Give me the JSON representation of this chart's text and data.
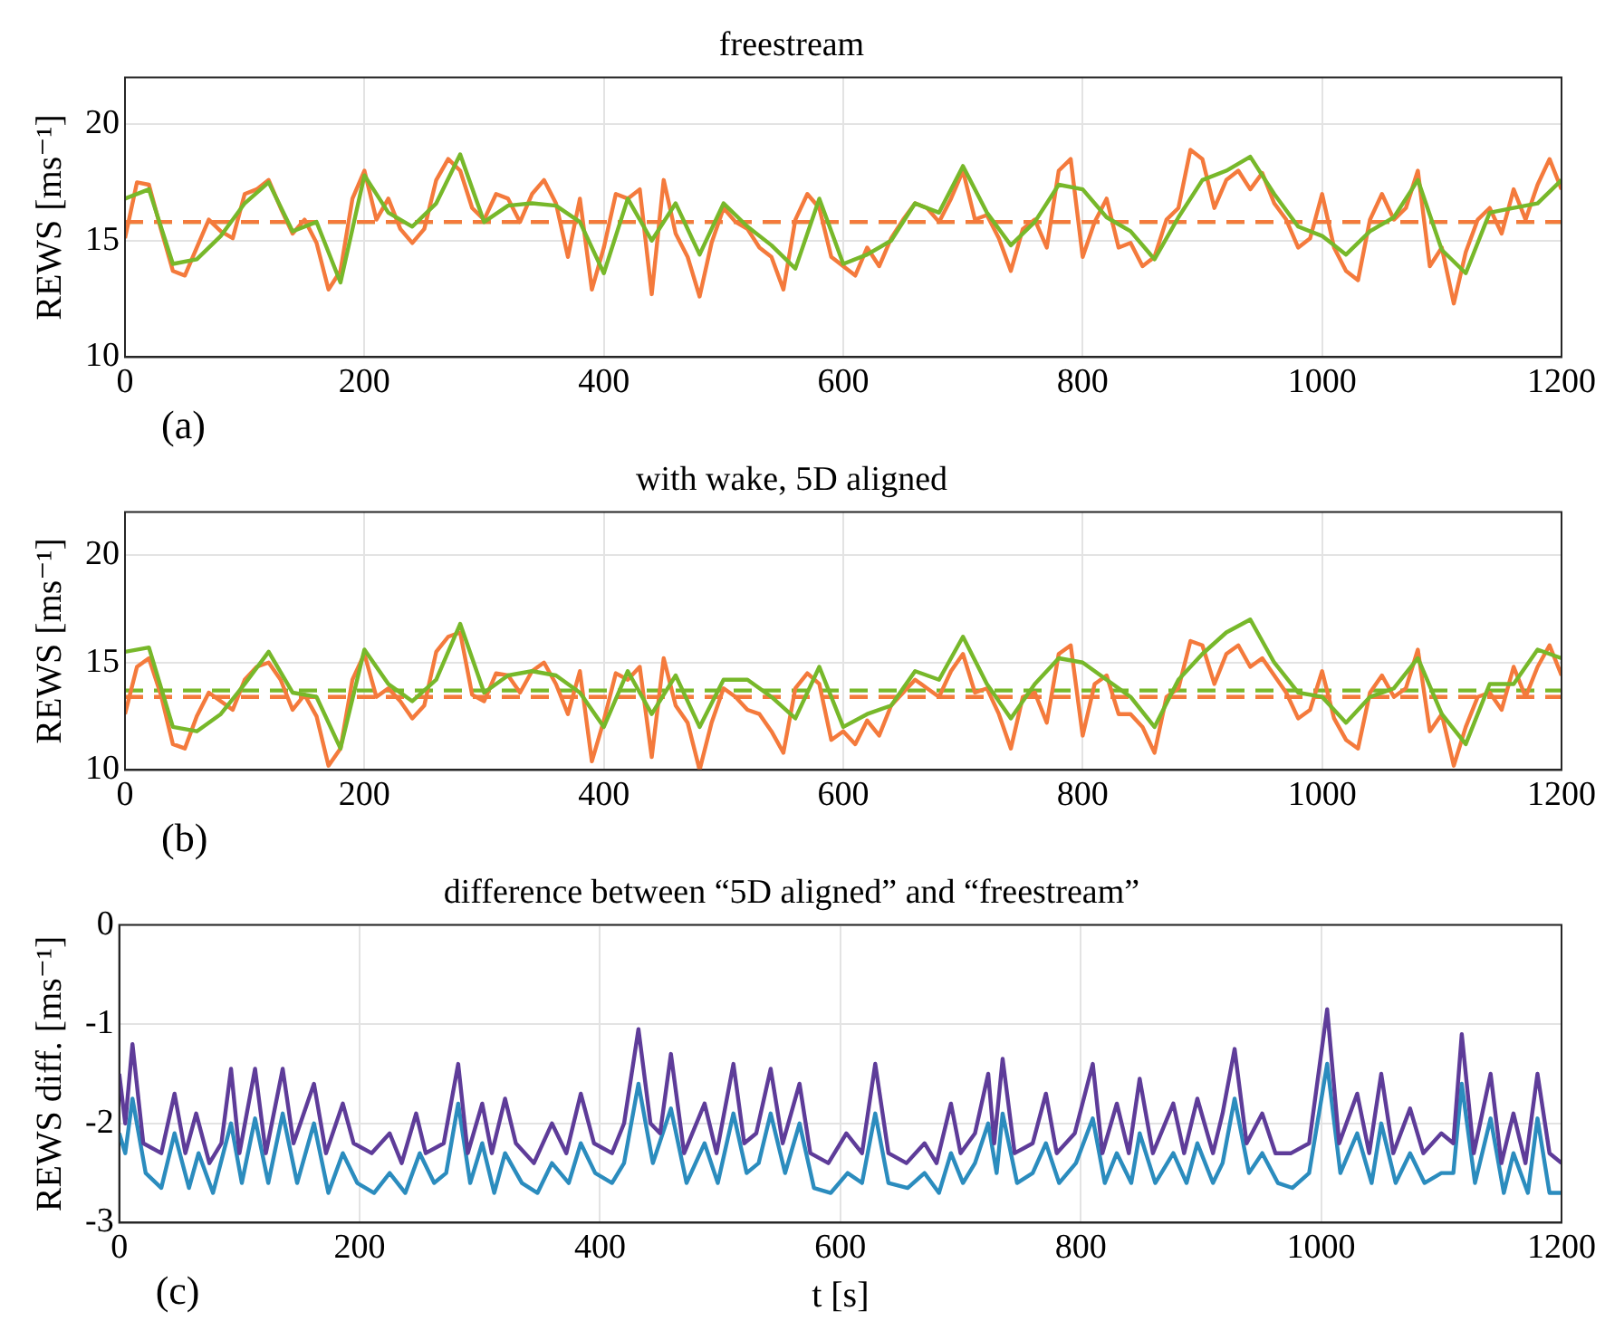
{
  "chart_data": [
    {
      "type": "line",
      "title": "freestream",
      "ylabel": "REWS [ms⁻¹]",
      "annotations": [
        "(a)"
      ],
      "xlim": [
        0,
        1200
      ],
      "xticks": [
        0,
        200,
        400,
        600,
        800,
        1000,
        1200
      ],
      "ylim": [
        10,
        22
      ],
      "yticks": [
        10,
        15,
        20
      ],
      "grid": true,
      "legend": false,
      "marker": "none",
      "line_style": "solid",
      "series": [
        {
          "color": "#77b82a",
          "x": [
            0,
            20,
            40,
            60,
            80,
            100,
            120,
            140,
            160,
            180,
            200,
            220,
            240,
            260,
            280,
            300,
            320,
            340,
            360,
            380,
            400,
            420,
            440,
            460,
            480,
            500,
            520,
            540,
            560,
            580,
            600,
            620,
            640,
            660,
            680,
            700,
            720,
            740,
            760,
            780,
            800,
            820,
            840,
            860,
            880,
            900,
            920,
            940,
            960,
            980,
            1000,
            1020,
            1040,
            1060,
            1080,
            1100,
            1120,
            1140,
            1160,
            1180,
            1200
          ],
          "values": [
            16.8,
            17.2,
            14,
            14.2,
            15.2,
            16.6,
            17.5,
            15.4,
            15.8,
            13.2,
            17.8,
            16.2,
            15.6,
            16.6,
            18.7,
            15.8,
            16.5,
            16.6,
            16.5,
            15.8,
            13.6,
            16.8,
            15,
            16.6,
            14.4,
            16.6,
            15.6,
            14.8,
            13.8,
            16.8,
            14,
            14.4,
            15,
            16.6,
            16.2,
            18.2,
            16.2,
            14.8,
            15.8,
            17.4,
            17.2,
            16,
            15.4,
            14.2,
            16,
            17.6,
            18,
            18.6,
            17,
            15.6,
            15.2,
            14.4,
            15.4,
            16,
            17.6,
            14.6,
            13.6,
            16.2,
            16.4,
            16.6,
            17.6
          ]
        },
        {
          "color": "#f47a3c",
          "x": [
            0,
            10,
            20,
            30,
            40,
            50,
            60,
            70,
            80,
            90,
            100,
            110,
            120,
            130,
            140,
            150,
            160,
            170,
            180,
            190,
            200,
            210,
            220,
            230,
            240,
            250,
            260,
            270,
            280,
            290,
            300,
            310,
            320,
            330,
            340,
            350,
            360,
            370,
            380,
            390,
            400,
            410,
            420,
            430,
            440,
            450,
            460,
            470,
            480,
            490,
            500,
            510,
            520,
            530,
            540,
            550,
            560,
            570,
            580,
            590,
            600,
            610,
            620,
            630,
            640,
            650,
            660,
            670,
            680,
            690,
            700,
            710,
            720,
            730,
            740,
            750,
            760,
            770,
            780,
            790,
            800,
            810,
            820,
            830,
            840,
            850,
            860,
            870,
            880,
            890,
            900,
            910,
            920,
            930,
            940,
            950,
            960,
            970,
            980,
            990,
            1000,
            1010,
            1020,
            1030,
            1040,
            1050,
            1060,
            1070,
            1080,
            1090,
            1100,
            1110,
            1120,
            1130,
            1140,
            1150,
            1160,
            1170,
            1180,
            1190,
            1200
          ],
          "values": [
            15.1,
            17.5,
            17.4,
            15.5,
            13.7,
            13.5,
            14.7,
            15.9,
            15.4,
            15.1,
            17,
            17.2,
            17.6,
            16.4,
            15.3,
            15.9,
            14.9,
            12.9,
            13.7,
            16.8,
            18,
            15.9,
            16.8,
            15.5,
            14.9,
            15.5,
            17.6,
            18.5,
            18,
            16.4,
            15.9,
            17,
            16.8,
            15.8,
            17,
            17.6,
            16.6,
            14.3,
            16.8,
            12.9,
            14.7,
            17,
            16.8,
            17.2,
            12.7,
            17.6,
            15.3,
            14.3,
            12.6,
            14.9,
            16.4,
            15.8,
            15.5,
            14.7,
            14.3,
            12.9,
            15.9,
            17,
            16.4,
            14.3,
            13.9,
            13.5,
            14.7,
            13.9,
            15.1,
            15.9,
            16.6,
            16.4,
            15.8,
            16.8,
            18,
            15.9,
            16.1,
            15.1,
            13.7,
            15.5,
            15.9,
            14.7,
            18,
            18.5,
            14.3,
            15.8,
            16.8,
            14.7,
            14.9,
            13.9,
            14.3,
            15.9,
            16.4,
            18.9,
            18.5,
            16.4,
            17.6,
            18,
            17.2,
            17.9,
            16.6,
            15.9,
            14.7,
            15.1,
            17,
            14.7,
            13.7,
            13.3,
            15.9,
            17,
            15.9,
            16.4,
            18,
            13.9,
            14.7,
            12.3,
            14.5,
            15.9,
            16.4,
            15.3,
            17.2,
            15.9,
            17.4,
            18.5,
            17.2
          ]
        }
      ],
      "ref_lines": [
        {
          "axis": "y",
          "value": 15.8,
          "color": "#77b82a",
          "line_style": "dashed"
        },
        {
          "axis": "y",
          "value": 15.8,
          "color": "#f47a3c",
          "line_style": "dashed"
        }
      ]
    },
    {
      "type": "line",
      "title": "with wake, 5D aligned",
      "ylabel": "REWS [ms⁻¹]",
      "annotations": [
        "(b)"
      ],
      "xlim": [
        0,
        1200
      ],
      "xticks": [
        0,
        200,
        400,
        600,
        800,
        1000,
        1200
      ],
      "ylim": [
        10,
        22
      ],
      "yticks": [
        10,
        15,
        20
      ],
      "grid": true,
      "legend": false,
      "marker": "none",
      "line_style": "solid",
      "series": [
        {
          "color": "#77b82a",
          "x": [
            0,
            20,
            40,
            60,
            80,
            100,
            120,
            140,
            160,
            180,
            200,
            220,
            240,
            260,
            280,
            300,
            320,
            340,
            360,
            380,
            400,
            420,
            440,
            460,
            480,
            500,
            520,
            540,
            560,
            580,
            600,
            620,
            640,
            660,
            680,
            700,
            720,
            740,
            760,
            780,
            800,
            820,
            840,
            860,
            880,
            900,
            920,
            940,
            960,
            980,
            1000,
            1020,
            1040,
            1060,
            1080,
            1100,
            1120,
            1140,
            1160,
            1180,
            1200
          ],
          "values": [
            15.5,
            15.7,
            12,
            11.8,
            12.6,
            14,
            15.5,
            13.6,
            13.4,
            11,
            15.6,
            14,
            13.2,
            14.2,
            16.8,
            13.6,
            14.4,
            14.6,
            14.4,
            13.6,
            12,
            14.6,
            12.6,
            14.4,
            12,
            14.2,
            14.2,
            13.4,
            12.4,
            14.8,
            12,
            12.6,
            13,
            14.6,
            14.2,
            16.2,
            14,
            12.4,
            14,
            15.2,
            15,
            14.2,
            13.4,
            12,
            14.2,
            15.4,
            16.4,
            17,
            15,
            13.6,
            13.4,
            12.2,
            13.4,
            13.8,
            15.2,
            12.6,
            11.2,
            14,
            14,
            15.6,
            15.2
          ]
        },
        {
          "color": "#f47a3c",
          "x": [
            0,
            10,
            20,
            30,
            40,
            50,
            60,
            70,
            80,
            90,
            100,
            110,
            120,
            130,
            140,
            150,
            160,
            170,
            180,
            190,
            200,
            210,
            220,
            230,
            240,
            250,
            260,
            270,
            280,
            290,
            300,
            310,
            320,
            330,
            340,
            350,
            360,
            370,
            380,
            390,
            400,
            410,
            420,
            430,
            440,
            450,
            460,
            470,
            480,
            490,
            500,
            510,
            520,
            530,
            540,
            550,
            560,
            570,
            580,
            590,
            600,
            610,
            620,
            630,
            640,
            650,
            660,
            670,
            680,
            690,
            700,
            710,
            720,
            730,
            740,
            750,
            760,
            770,
            780,
            790,
            800,
            810,
            820,
            830,
            840,
            850,
            860,
            870,
            880,
            890,
            900,
            910,
            920,
            930,
            940,
            950,
            960,
            970,
            980,
            990,
            1000,
            1010,
            1020,
            1030,
            1040,
            1050,
            1060,
            1070,
            1080,
            1090,
            1100,
            1110,
            1120,
            1130,
            1140,
            1150,
            1160,
            1170,
            1180,
            1190,
            1200
          ],
          "values": [
            12.6,
            14.8,
            15.2,
            13.5,
            11.2,
            11,
            12.5,
            13.6,
            13.2,
            12.8,
            14.2,
            14.8,
            15,
            14.2,
            12.8,
            13.5,
            12.5,
            10.2,
            11,
            14.2,
            15.4,
            13.4,
            13.8,
            13.2,
            12.4,
            13,
            15.5,
            16.2,
            16.4,
            13.5,
            13.2,
            14.5,
            14.4,
            13.6,
            14.6,
            15,
            14,
            12.6,
            14.6,
            10.4,
            12.3,
            14.5,
            14.2,
            14.8,
            10.6,
            15.2,
            13,
            12.2,
            10,
            12.2,
            13.8,
            13.4,
            12.8,
            12.6,
            11.8,
            10.8,
            13.8,
            14.5,
            14,
            11.4,
            11.8,
            11.2,
            12.3,
            11.6,
            13,
            13.6,
            14.2,
            13.8,
            13.4,
            14.6,
            15.4,
            13.6,
            13.8,
            12.6,
            11,
            13.4,
            13.6,
            12.2,
            15.4,
            15.8,
            11.6,
            14,
            14.4,
            12.6,
            12.6,
            12,
            10.8,
            13.4,
            13.8,
            16,
            15.8,
            14,
            15.4,
            15.8,
            14.8,
            15.2,
            14.4,
            13.6,
            12.4,
            12.8,
            14.6,
            12.4,
            11.4,
            11,
            13.6,
            14.4,
            13.4,
            13.8,
            15.6,
            11.8,
            12.6,
            10.2,
            12,
            13.4,
            13.6,
            12.8,
            14.8,
            13.4,
            14.8,
            15.8,
            14.4
          ]
        }
      ],
      "ref_lines": [
        {
          "axis": "y",
          "value": 13.7,
          "color": "#77b82a",
          "line_style": "dashed"
        },
        {
          "axis": "y",
          "value": 13.4,
          "color": "#f47a3c",
          "line_style": "dashed"
        }
      ]
    },
    {
      "type": "line",
      "title": "difference between “5D aligned” and “freestream”",
      "xlabel": "t [s]",
      "ylabel": "REWS diff. [ms⁻¹]",
      "annotations": [
        "(c)"
      ],
      "xlim": [
        0,
        1200
      ],
      "xticks": [
        0,
        200,
        400,
        600,
        800,
        1000,
        1200
      ],
      "ylim": [
        -3,
        0
      ],
      "yticks": [
        -3,
        -2,
        -1,
        0
      ],
      "grid": true,
      "legend": false,
      "marker": "none",
      "line_style": "solid",
      "series": [
        {
          "color": "#5e3c99",
          "x": [
            0,
            5,
            11,
            20,
            35,
            46,
            55,
            64,
            75,
            85,
            93,
            100,
            113,
            122,
            136,
            145,
            162,
            172,
            186,
            195,
            210,
            225,
            235,
            247,
            255,
            270,
            282,
            290,
            302,
            310,
            321,
            330,
            345,
            360,
            372,
            384,
            395,
            410,
            420,
            432,
            442,
            450,
            459,
            470,
            487,
            497,
            511,
            520,
            530,
            542,
            552,
            566,
            575,
            590,
            605,
            618,
            629,
            640,
            655,
            670,
            680,
            692,
            700,
            712,
            723,
            728,
            735,
            745,
            760,
            771,
            780,
            795,
            810,
            818,
            830,
            840,
            849,
            860,
            877,
            886,
            897,
            910,
            918,
            928,
            938,
            951,
            962,
            975,
            990,
            1005,
            1015,
            1030,
            1040,
            1050,
            1060,
            1074,
            1085,
            1100,
            1110,
            1117,
            1127,
            1141,
            1150,
            1160,
            1170,
            1180,
            1190,
            1200
          ],
          "values": [
            -1.5,
            -2.0,
            -1.2,
            -2.2,
            -2.3,
            -1.7,
            -2.3,
            -1.9,
            -2.4,
            -2.2,
            -1.45,
            -2.3,
            -1.45,
            -2.3,
            -1.45,
            -2.2,
            -1.6,
            -2.3,
            -1.8,
            -2.2,
            -2.3,
            -2.1,
            -2.4,
            -1.9,
            -2.3,
            -2.2,
            -1.4,
            -2.3,
            -1.8,
            -2.3,
            -1.75,
            -2.2,
            -2.4,
            -2.0,
            -2.3,
            -1.7,
            -2.2,
            -2.3,
            -2.0,
            -1.05,
            -2.0,
            -2.1,
            -1.3,
            -2.3,
            -1.8,
            -2.3,
            -1.4,
            -2.2,
            -2.1,
            -1.45,
            -2.2,
            -1.6,
            -2.3,
            -2.4,
            -2.1,
            -2.3,
            -1.4,
            -2.3,
            -2.4,
            -2.2,
            -2.4,
            -1.8,
            -2.3,
            -2.1,
            -1.5,
            -2.2,
            -1.35,
            -2.3,
            -2.2,
            -1.7,
            -2.3,
            -2.1,
            -1.4,
            -2.3,
            -1.8,
            -2.3,
            -1.55,
            -2.3,
            -1.8,
            -2.3,
            -1.75,
            -2.3,
            -1.9,
            -1.25,
            -2.2,
            -1.9,
            -2.3,
            -2.3,
            -2.2,
            -0.85,
            -2.2,
            -1.7,
            -2.3,
            -1.5,
            -2.3,
            -1.85,
            -2.3,
            -2.1,
            -2.2,
            -1.1,
            -2.3,
            -1.5,
            -2.4,
            -1.9,
            -2.4,
            -1.5,
            -2.3,
            -2.4
          ]
        },
        {
          "color": "#2b8cbe",
          "x": [
            0,
            5,
            11,
            22,
            35,
            46,
            58,
            66,
            78,
            93,
            102,
            113,
            124,
            136,
            148,
            162,
            174,
            186,
            198,
            212,
            225,
            238,
            250,
            262,
            272,
            282,
            292,
            302,
            312,
            321,
            335,
            348,
            360,
            374,
            384,
            396,
            410,
            420,
            432,
            444,
            459,
            472,
            487,
            498,
            511,
            522,
            532,
            542,
            554,
            566,
            578,
            592,
            606,
            618,
            629,
            640,
            656,
            670,
            682,
            692,
            702,
            712,
            723,
            730,
            735,
            747,
            760,
            771,
            782,
            796,
            810,
            820,
            830,
            842,
            849,
            862,
            877,
            888,
            897,
            910,
            918,
            928,
            940,
            951,
            964,
            976,
            990,
            1005,
            1016,
            1030,
            1042,
            1050,
            1062,
            1074,
            1086,
            1100,
            1110,
            1117,
            1128,
            1141,
            1152,
            1160,
            1172,
            1180,
            1190,
            1200
          ],
          "values": [
            -2.1,
            -2.3,
            -1.75,
            -2.5,
            -2.65,
            -2.1,
            -2.65,
            -2.3,
            -2.7,
            -2.0,
            -2.6,
            -1.95,
            -2.6,
            -1.9,
            -2.6,
            -2.0,
            -2.7,
            -2.3,
            -2.6,
            -2.7,
            -2.5,
            -2.7,
            -2.3,
            -2.6,
            -2.5,
            -1.8,
            -2.6,
            -2.2,
            -2.7,
            -2.3,
            -2.6,
            -2.7,
            -2.4,
            -2.6,
            -2.2,
            -2.5,
            -2.6,
            -2.4,
            -1.6,
            -2.4,
            -1.85,
            -2.6,
            -2.2,
            -2.6,
            -1.9,
            -2.5,
            -2.4,
            -1.9,
            -2.5,
            -2.0,
            -2.65,
            -2.7,
            -2.5,
            -2.6,
            -1.9,
            -2.6,
            -2.65,
            -2.5,
            -2.7,
            -2.3,
            -2.6,
            -2.4,
            -2.0,
            -2.5,
            -1.9,
            -2.6,
            -2.5,
            -2.2,
            -2.6,
            -2.4,
            -1.95,
            -2.6,
            -2.3,
            -2.6,
            -2.1,
            -2.6,
            -2.3,
            -2.6,
            -2.2,
            -2.6,
            -2.4,
            -1.75,
            -2.5,
            -2.3,
            -2.6,
            -2.65,
            -2.5,
            -1.4,
            -2.5,
            -2.1,
            -2.6,
            -2.0,
            -2.6,
            -2.3,
            -2.6,
            -2.5,
            -2.5,
            -1.6,
            -2.6,
            -1.95,
            -2.7,
            -2.3,
            -2.7,
            -1.95,
            -2.7,
            -2.7
          ]
        }
      ]
    }
  ]
}
